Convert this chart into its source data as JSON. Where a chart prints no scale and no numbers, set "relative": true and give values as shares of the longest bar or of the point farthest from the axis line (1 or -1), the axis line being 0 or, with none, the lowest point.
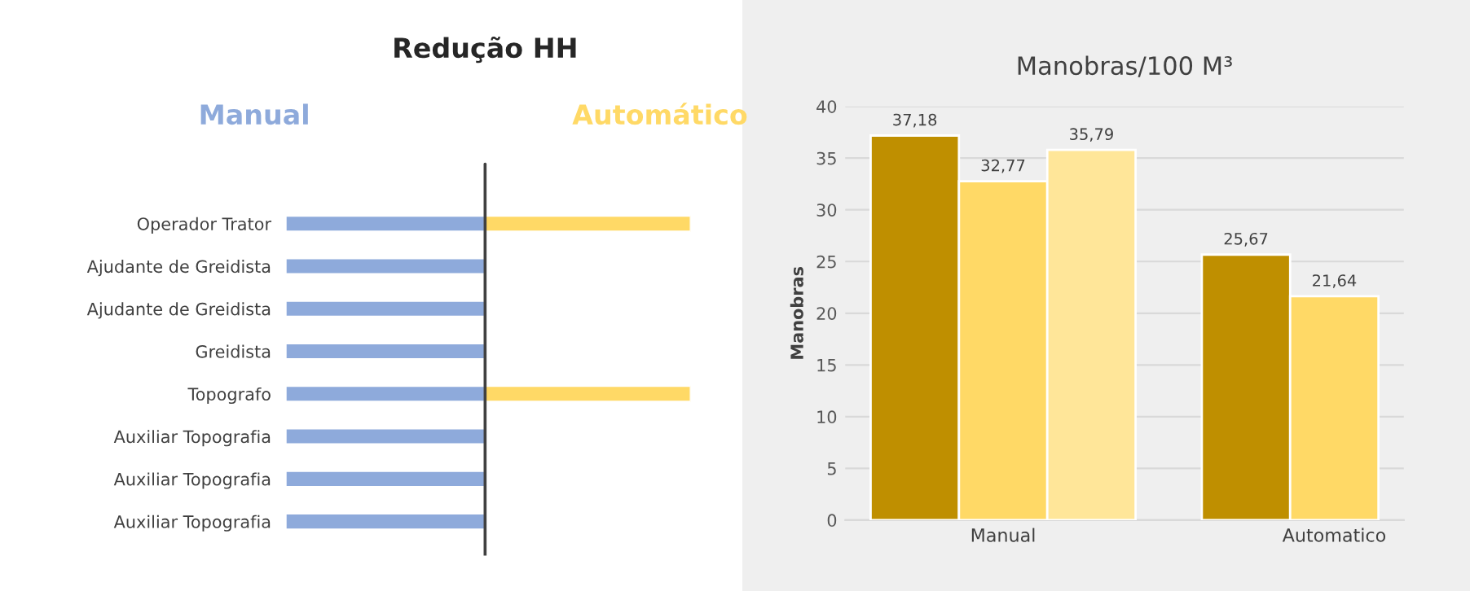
{
  "chart_data": [
    {
      "type": "bar",
      "orientation": "horizontal",
      "relative": true,
      "title": "Redução HH",
      "categories": [
        "Operador Trator",
        "Ajudante de Greidista",
        "Ajudante de Greidista",
        "Greidista",
        "Topografo",
        "Auxiliar Topografia",
        "Auxiliar Topografia",
        "Auxiliar Topografia"
      ],
      "series": [
        {
          "name": "Manual",
          "color": "#8eaadb",
          "values": [
            -0.97,
            -0.97,
            -0.97,
            -0.97,
            -0.97,
            -0.97,
            -0.97,
            -0.97
          ]
        },
        {
          "name": "Automático",
          "color": "#ffd966",
          "values": [
            1,
            null,
            null,
            null,
            1,
            null,
            null,
            null
          ]
        }
      ]
    },
    {
      "type": "bar",
      "title": "Manobras/100 M³",
      "ylabel": "Manobras",
      "categories": [
        "Manual",
        "Automatico"
      ],
      "ylim": [
        0,
        40
      ],
      "yticks": [
        0,
        5,
        10,
        15,
        20,
        25,
        30,
        35,
        40
      ],
      "grid": "y",
      "series": [
        {
          "color": "#bf8f00",
          "values": [
            37.18,
            25.67
          ],
          "value_labels": [
            "37,18",
            "25,67"
          ]
        },
        {
          "color": "#ffd966",
          "values": [
            32.77,
            21.64
          ],
          "value_labels": [
            "32,77",
            "21,64"
          ]
        },
        {
          "color": "#ffe699",
          "values": [
            35.79,
            null
          ],
          "value_labels": [
            "35,79",
            null
          ]
        }
      ]
    }
  ]
}
